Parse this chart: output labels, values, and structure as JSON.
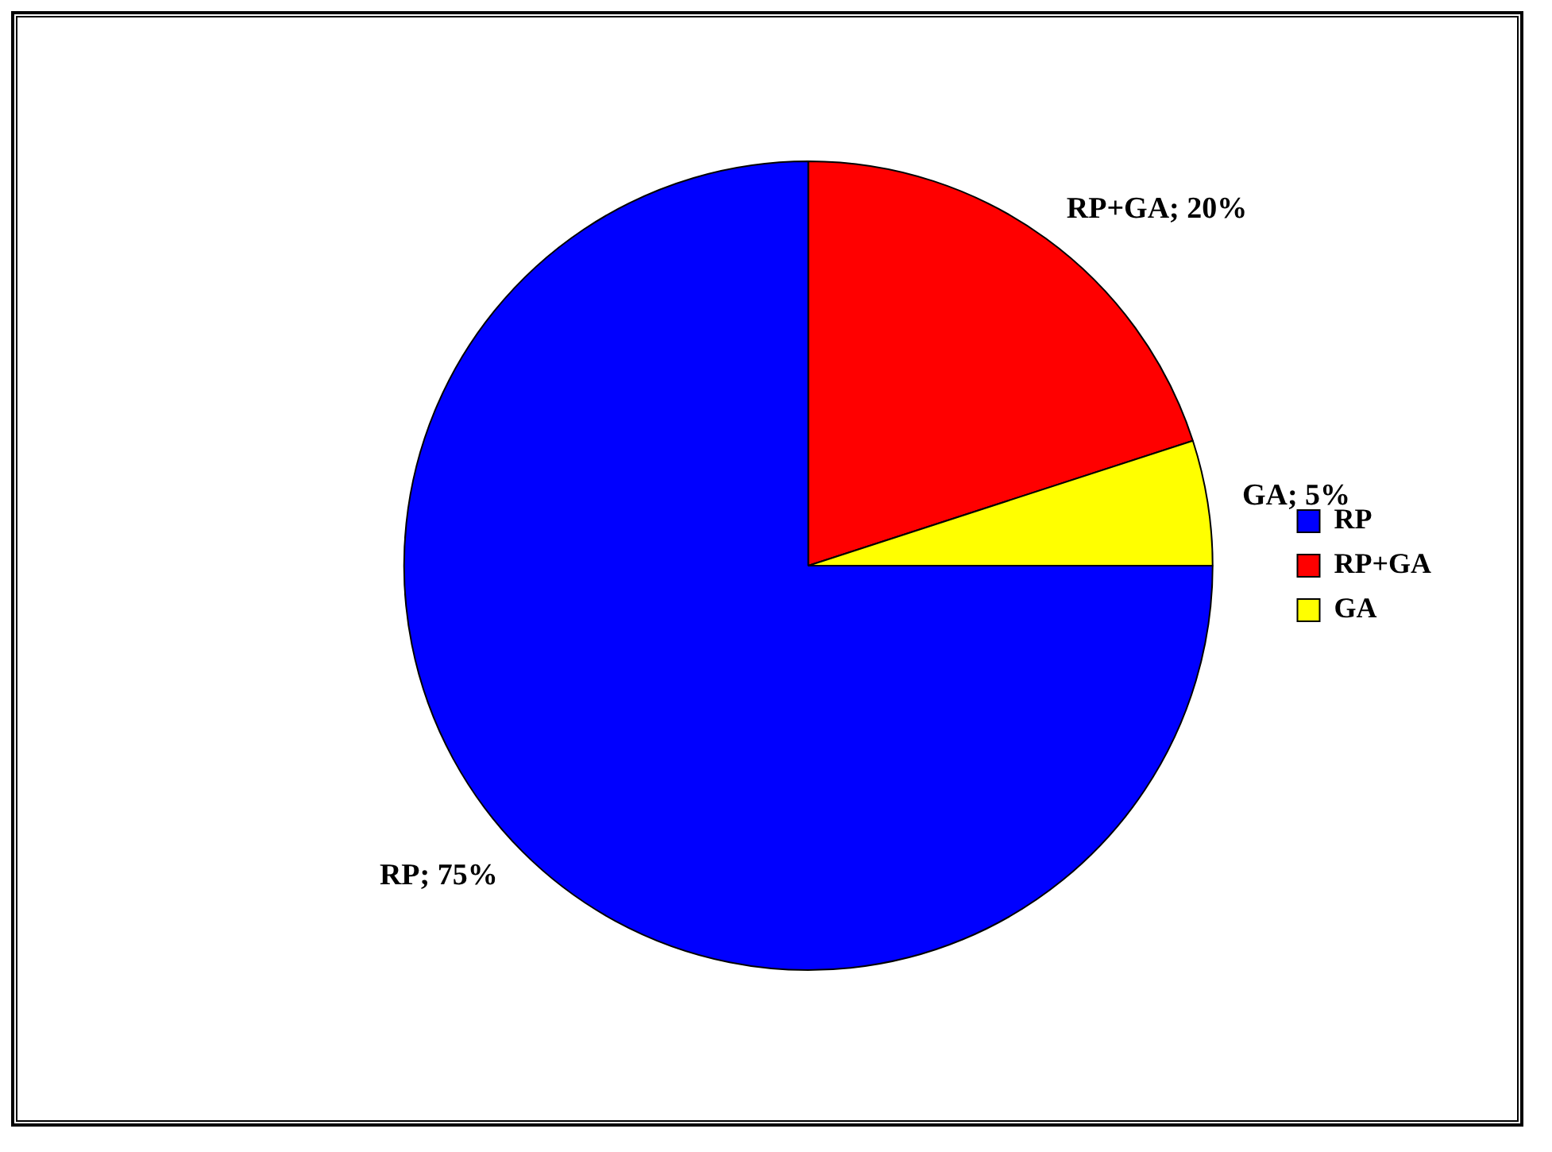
{
  "chart_data": {
    "type": "pie",
    "categories": [
      "RP",
      "RP+GA",
      "GA"
    ],
    "values": [
      75,
      20,
      5
    ],
    "colors": [
      "#0000ff",
      "#ff0000",
      "#ffff00"
    ],
    "value_labels": [
      "RP; 75%",
      "RP+GA; 20%",
      "GA; 5%"
    ],
    "legend": "right"
  }
}
